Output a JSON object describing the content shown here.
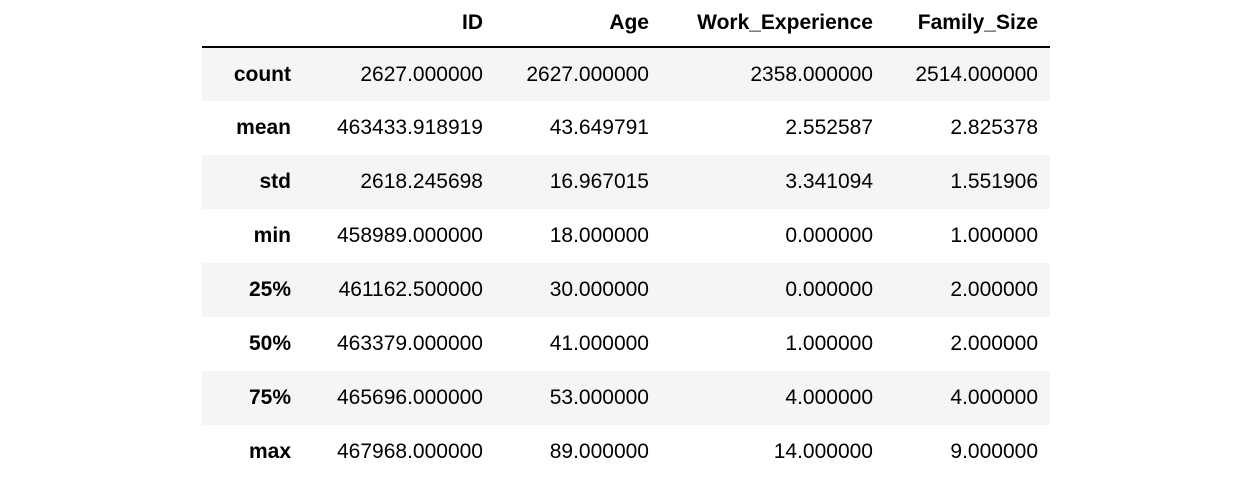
{
  "table": {
    "index_header": "",
    "columns": [
      "ID",
      "Age",
      "Work_Experience",
      "Family_Size"
    ],
    "rows": [
      {
        "label": "count",
        "values": [
          "2627.000000",
          "2627.000000",
          "2358.000000",
          "2514.000000"
        ]
      },
      {
        "label": "mean",
        "values": [
          "463433.918919",
          "43.649791",
          "2.552587",
          "2.825378"
        ]
      },
      {
        "label": "std",
        "values": [
          "2618.245698",
          "16.967015",
          "3.341094",
          "1.551906"
        ]
      },
      {
        "label": "min",
        "values": [
          "458989.000000",
          "18.000000",
          "0.000000",
          "1.000000"
        ]
      },
      {
        "label": "25%",
        "values": [
          "461162.500000",
          "30.000000",
          "0.000000",
          "2.000000"
        ]
      },
      {
        "label": "50%",
        "values": [
          "463379.000000",
          "41.000000",
          "1.000000",
          "2.000000"
        ]
      },
      {
        "label": "75%",
        "values": [
          "465696.000000",
          "53.000000",
          "4.000000",
          "4.000000"
        ]
      },
      {
        "label": "max",
        "values": [
          "467968.000000",
          "89.000000",
          "14.000000",
          "9.000000"
        ]
      }
    ]
  }
}
